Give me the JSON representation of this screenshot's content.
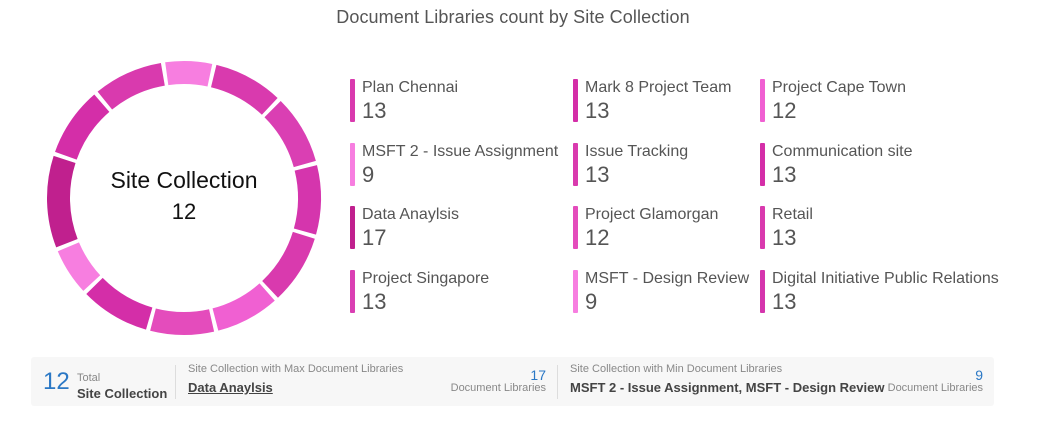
{
  "title": "Document Libraries count by Site Collection",
  "center": {
    "label": "Site Collection",
    "value": "12"
  },
  "chart_data": {
    "type": "pie",
    "title": "Document Libraries count by Site Collection",
    "categories": [
      "Plan Chennai",
      "MSFT 2 - Issue Assignment",
      "Data Anaylsis",
      "Project Singapore",
      "Mark 8 Project Team",
      "Issue Tracking",
      "Project Glamorgan",
      "MSFT - Design Review",
      "Project Cape Town",
      "Communication site",
      "Retail",
      "Digital Initiative Public Relations"
    ],
    "values": [
      13,
      9,
      17,
      13,
      13,
      13,
      12,
      9,
      12,
      13,
      13,
      13
    ],
    "labels": [
      "13",
      "9",
      "17",
      "13",
      "13",
      "13",
      "12",
      "9",
      "12",
      "13",
      "13",
      "13"
    ],
    "colors": [
      "#d93aae",
      "#f77ee0",
      "#c0208e",
      "#da3fb3",
      "#d42ea8",
      "#d93aae",
      "#e44cbc",
      "#f77ee0",
      "#f060d2",
      "#d42ea8",
      "#d93aae",
      "#d535ad"
    ],
    "ring_order": [
      2,
      4,
      0,
      7,
      10,
      3,
      11,
      5,
      8,
      6,
      9,
      1
    ],
    "legend_placement": "right"
  },
  "summary": {
    "total_value": "12",
    "total_caption": "Total",
    "total_label": "Site Collection",
    "max_caption": "Site Collection with Max Document Libraries",
    "max_name": "Data Anaylsis",
    "max_count": "17",
    "max_unit": "Document Libraries",
    "min_caption": "Site Collection with Min Document Libraries",
    "min_name": "MSFT 2 - Issue Assignment, MSFT - Design Review",
    "min_count": "9",
    "min_unit": "Document Libraries"
  }
}
